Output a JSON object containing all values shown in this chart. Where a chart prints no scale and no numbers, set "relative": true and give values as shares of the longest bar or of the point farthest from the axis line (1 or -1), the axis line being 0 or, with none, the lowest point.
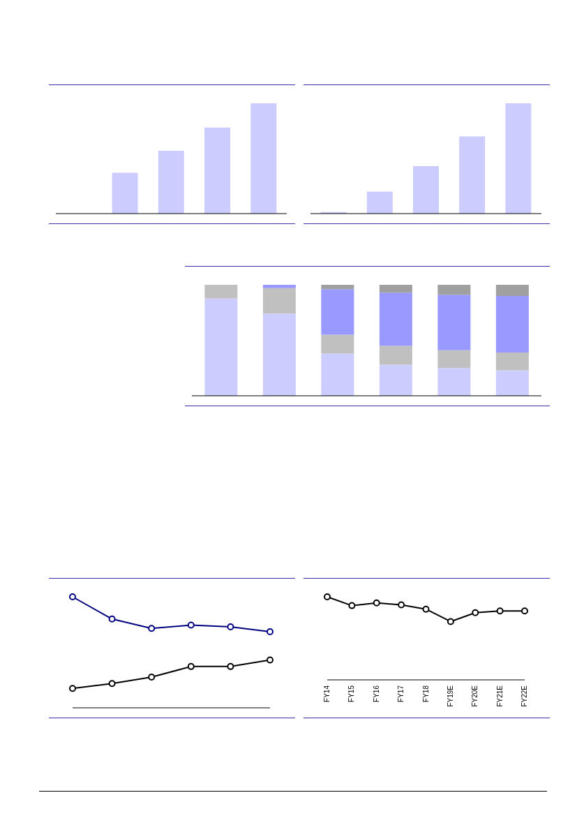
{
  "chart_data": [
    {
      "type": "bar",
      "relative": true,
      "categories": [
        null,
        null,
        null,
        null
      ],
      "values": [
        0.37,
        0.57,
        0.78,
        1
      ],
      "color": "#ccccff"
    },
    {
      "type": "bar",
      "relative": true,
      "categories": [
        null,
        null,
        null,
        null,
        null
      ],
      "values": [
        0.015,
        0.2,
        0.43,
        0.7,
        1
      ],
      "color": "#ccccff"
    },
    {
      "type": "bar",
      "relative": true,
      "stacked": true,
      "categories": [
        null,
        null,
        null,
        null,
        null,
        null
      ],
      "series": [
        {
          "color": "#ccccff",
          "values": [
            0.877,
            0.74,
            0.38,
            0.28,
            0.25,
            0.23
          ]
        },
        {
          "color": "#c0c0c0",
          "values": [
            0.123,
            0.23,
            0.17,
            0.17,
            0.16,
            0.16
          ]
        },
        {
          "color": "#9999ff",
          "values": [
            0,
            0.03,
            0.41,
            0.48,
            0.5,
            0.51
          ]
        },
        {
          "color": "#a0a0a0",
          "values": [
            0,
            0,
            0.04,
            0.07,
            0.09,
            0.1
          ]
        }
      ]
    },
    {
      "type": "line",
      "relative": true,
      "marker": "circle",
      "categories": [
        null,
        null,
        null,
        null,
        null,
        null
      ],
      "series": [
        {
          "color": "#000000",
          "values": [
            0.175,
            0.219,
            0.277,
            0.372,
            0.372,
            0.431
          ]
        },
        {
          "color": "#000080",
          "values": [
            1,
            0.8,
            0.715,
            0.745,
            0.73,
            0.686
          ]
        }
      ]
    },
    {
      "type": "line",
      "relative": true,
      "marker": "circle",
      "categories": [
        "FY14",
        "FY15",
        "FY16",
        "FY17",
        "FY18",
        "FY19E",
        "FY20E",
        "FY21E",
        "FY22E"
      ],
      "series": [
        {
          "color": "#000000",
          "values": [
            1,
            0.894,
            0.926,
            0.904,
            0.851,
            0.702,
            0.809,
            0.83,
            0.83
          ]
        }
      ]
    }
  ]
}
